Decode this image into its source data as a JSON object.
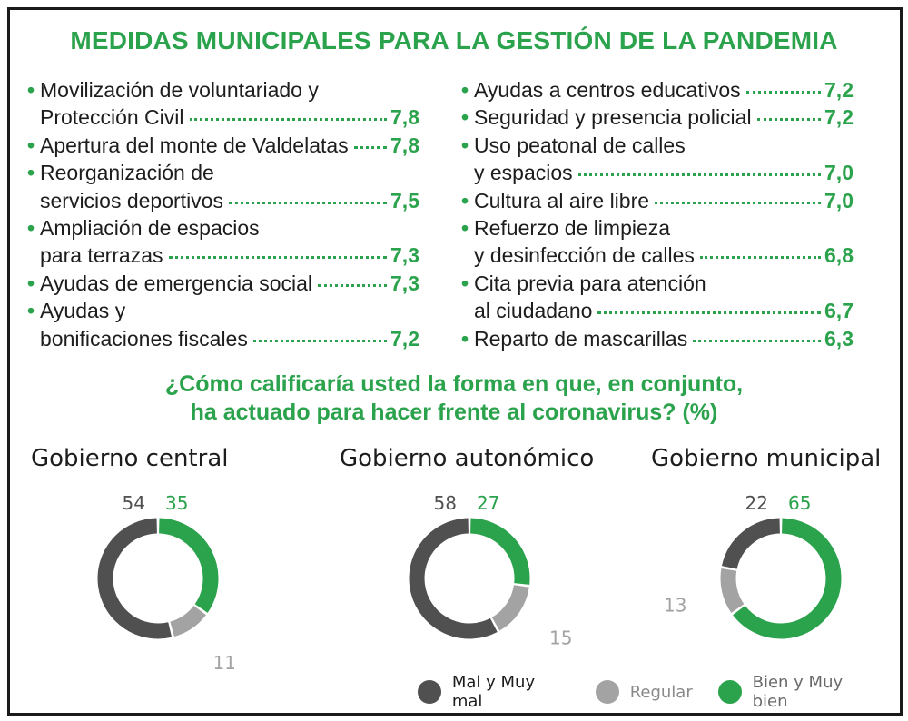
{
  "title": "MEDIDAS MUNICIPALES PARA LA GESTIÓN DE LA PANDEMIA",
  "measures_left": [
    {
      "lines": [
        "Movilización de voluntariado y",
        "Protección Civil"
      ],
      "score": "7,8"
    },
    {
      "lines": [
        "Apertura del monte de Valdelatas"
      ],
      "score": "7,8"
    },
    {
      "lines": [
        "Reorganización de",
        "servicios deportivos"
      ],
      "score": "7,5"
    },
    {
      "lines": [
        "Ampliación de espacios",
        "para terrazas"
      ],
      "score": "7,3"
    },
    {
      "lines": [
        "Ayudas de emergencia social"
      ],
      "score": "7,3"
    },
    {
      "lines": [
        "Ayudas y",
        "bonificaciones fiscales"
      ],
      "score": "7,2"
    }
  ],
  "measures_right": [
    {
      "lines": [
        "Ayudas a centros educativos"
      ],
      "score": "7,2"
    },
    {
      "lines": [
        "Seguridad y presencia policial"
      ],
      "score": "7,2"
    },
    {
      "lines": [
        "Uso peatonal de calles",
        "y espacios"
      ],
      "score": "7,0"
    },
    {
      "lines": [
        "Cultura al aire libre"
      ],
      "score": "7,0"
    },
    {
      "lines": [
        "Refuerzo de limpieza",
        "y desinfección de calles"
      ],
      "score": "6,8"
    },
    {
      "lines": [
        "Cita previa para atención",
        "al ciudadano"
      ],
      "score": "6,7"
    },
    {
      "lines": [
        "Reparto de mascarillas"
      ],
      "score": "6,3"
    }
  ],
  "question": {
    "line1": "¿Cómo calificaría usted la forma en que, en conjunto,",
    "line2": "ha actuado para hacer frente al coronavirus? (%)"
  },
  "colors": {
    "accent": "#2ba24c",
    "mal": "#505050",
    "regular": "#a3a3a3",
    "bien": "#2ba24c",
    "text": "#1d1d1d"
  },
  "chart_data": [
    {
      "type": "pie",
      "title": "Gobierno central",
      "categories": [
        "Mal y Muy mal",
        "Regular",
        "Bien y Muy bien"
      ],
      "values": [
        54,
        11,
        35
      ],
      "value_labels": [
        "54",
        "11",
        "35"
      ]
    },
    {
      "type": "pie",
      "title": "Gobierno autonómico",
      "categories": [
        "Mal y Muy mal",
        "Regular",
        "Bien y Muy bien"
      ],
      "values": [
        58,
        15,
        27
      ],
      "value_labels": [
        "58",
        "15",
        "27"
      ]
    },
    {
      "type": "pie",
      "title": "Gobierno municipal",
      "categories": [
        "Mal y Muy mal",
        "Regular",
        "Bien y Muy bien"
      ],
      "values": [
        22,
        13,
        65
      ],
      "value_labels": [
        "22",
        "13",
        "65"
      ]
    }
  ],
  "legend": [
    {
      "label": "Mal y Muy mal",
      "color": "#505050"
    },
    {
      "label": "Regular",
      "color": "#a3a3a3"
    },
    {
      "label": "Bien y Muy bien",
      "color": "#2ba24c"
    }
  ]
}
